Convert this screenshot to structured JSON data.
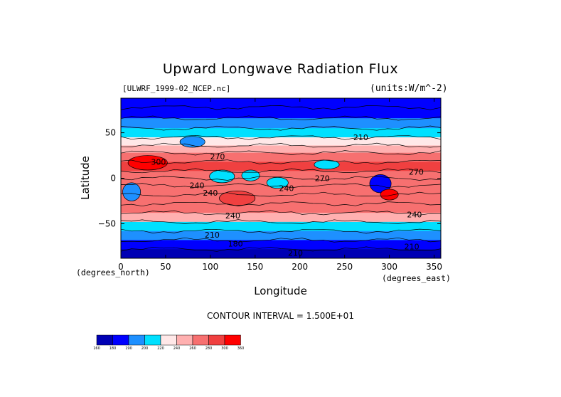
{
  "chart_data": {
    "type": "heatmap",
    "title": "Upward Longwave Radiation Flux",
    "source_label": "[ULWRF_1999-02_NCEP.nc]",
    "units_label": "(units:W/m^-2)",
    "xlabel": "Longitude",
    "ylabel": "Latitude",
    "x_unit_label": "(degrees_north)",
    "x2_unit_label": "(degrees_east)",
    "xlim": [
      0,
      357.5
    ],
    "ylim": [
      -88,
      88
    ],
    "x_ticks": [
      0,
      50,
      100,
      150,
      200,
      250,
      300,
      350
    ],
    "y_ticks": [
      50,
      0,
      -50
    ],
    "y_tick_labels": [
      "50",
      "0",
      "−50"
    ],
    "contour_interval_text": "CONTOUR INTERVAL = 1.500E+01",
    "contour_labels": [
      {
        "text": "210",
        "lon": 268,
        "lat": 45
      },
      {
        "text": "270",
        "lon": 108,
        "lat": 24
      },
      {
        "text": "300",
        "lon": 42,
        "lat": 18
      },
      {
        "text": "270",
        "lon": 225,
        "lat": 0
      },
      {
        "text": "270",
        "lon": 330,
        "lat": 7
      },
      {
        "text": "240",
        "lon": 85,
        "lat": -8
      },
      {
        "text": "240",
        "lon": 100,
        "lat": -16
      },
      {
        "text": "240",
        "lon": 185,
        "lat": -11
      },
      {
        "text": "240",
        "lon": 125,
        "lat": -41
      },
      {
        "text": "240",
        "lon": 328,
        "lat": -40
      },
      {
        "text": "210",
        "lon": 102,
        "lat": -62
      },
      {
        "text": "180",
        "lon": 128,
        "lat": -72
      },
      {
        "text": "210",
        "lon": 195,
        "lat": -82
      },
      {
        "text": "210",
        "lon": 325,
        "lat": -75
      }
    ],
    "colorbar": {
      "levels": [
        165,
        180,
        195,
        210,
        225,
        240,
        255,
        270,
        285,
        300
      ],
      "tick_labels": [
        "160",
        "180",
        "190",
        "200",
        "220",
        "240",
        "260",
        "280",
        "300",
        "360"
      ],
      "colors": [
        "#0000b4",
        "#0000ff",
        "#1e90ff",
        "#00e0ff",
        "#ffe8e8",
        "#ffb0b0",
        "#f77070",
        "#f04040",
        "#ff0000"
      ]
    },
    "grid": false,
    "bands": [
      {
        "lat": 88,
        "value": 185
      },
      {
        "lat": 78,
        "value": 180
      },
      {
        "lat": 66,
        "value": 192
      },
      {
        "lat": 55,
        "value": 206
      },
      {
        "lat": 45,
        "value": 218
      },
      {
        "lat": 36,
        "value": 245
      },
      {
        "lat": 28,
        "value": 262
      },
      {
        "lat": 18,
        "value": 275
      },
      {
        "lat": 8,
        "value": 268
      },
      {
        "lat": 0,
        "value": 258
      },
      {
        "lat": -8,
        "value": 255
      },
      {
        "lat": -18,
        "value": 262
      },
      {
        "lat": -28,
        "value": 272
      },
      {
        "lat": -38,
        "value": 255
      },
      {
        "lat": -48,
        "value": 230
      },
      {
        "lat": -58,
        "value": 212
      },
      {
        "lat": -68,
        "value": 200
      },
      {
        "lat": -78,
        "value": 182
      },
      {
        "lat": -88,
        "value": 165
      }
    ],
    "features": [
      {
        "lon": 30,
        "lat": 17,
        "rx": 22,
        "ry": 8,
        "value": 302
      },
      {
        "lon": 12,
        "lat": -15,
        "rx": 10,
        "ry": 10,
        "value": 205
      },
      {
        "lon": 113,
        "lat": 2,
        "rx": 14,
        "ry": 7,
        "value": 212
      },
      {
        "lon": 145,
        "lat": 3,
        "rx": 10,
        "ry": 6,
        "value": 212
      },
      {
        "lon": 175,
        "lat": -5,
        "rx": 12,
        "ry": 6,
        "value": 218
      },
      {
        "lon": 290,
        "lat": -6,
        "rx": 12,
        "ry": 10,
        "value": 190
      },
      {
        "lon": 230,
        "lat": 15,
        "rx": 14,
        "ry": 5,
        "value": 218
      },
      {
        "lon": 80,
        "lat": 40,
        "rx": 14,
        "ry": 6,
        "value": 205
      },
      {
        "lon": 130,
        "lat": -22,
        "rx": 20,
        "ry": 8,
        "value": 280
      },
      {
        "lon": 300,
        "lat": -18,
        "rx": 10,
        "ry": 6,
        "value": 285
      }
    ]
  }
}
